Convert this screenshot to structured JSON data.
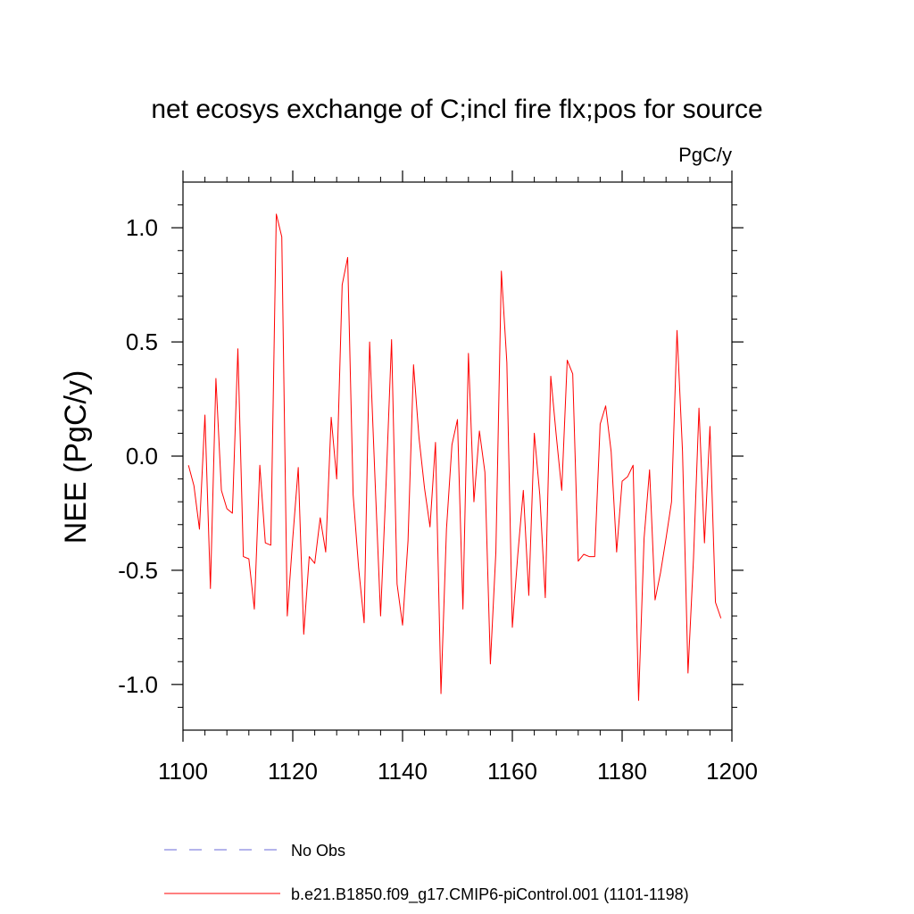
{
  "chart_data": {
    "type": "line",
    "title": "net ecosys exchange of C;incl fire flx;pos for source",
    "units_label": "PgC/y",
    "xlabel": "",
    "ylabel": "NEE  (PgC/y)",
    "xlim": [
      1100,
      1200
    ],
    "ylim": [
      -1.2,
      1.2
    ],
    "x_ticks": [
      1100,
      1120,
      1140,
      1160,
      1180,
      1200
    ],
    "x_tick_labels": [
      "1100",
      "1120",
      "1140",
      "1160",
      "1180",
      "1200"
    ],
    "y_ticks": [
      -1.0,
      -0.5,
      0.0,
      0.5,
      1.0
    ],
    "y_tick_labels": [
      "-1.0",
      "-0.5",
      "0.0",
      "0.5",
      "1.0"
    ],
    "x_minor_step": 4,
    "y_minor_step": 0.1,
    "grid": false,
    "legend_position": "bottom",
    "series": [
      {
        "name": "b.e21.B1850.f09_g17.CMIP6-piControl.001 (1101-1198)",
        "color": "#ff0000",
        "style": "solid",
        "x_start": 1101,
        "x_step": 1,
        "values": [
          -0.04,
          -0.13,
          -0.32,
          0.18,
          -0.58,
          0.34,
          -0.15,
          -0.23,
          -0.25,
          0.47,
          -0.44,
          -0.45,
          -0.67,
          -0.04,
          -0.38,
          -0.39,
          1.06,
          0.96,
          -0.7,
          -0.36,
          -0.05,
          -0.78,
          -0.44,
          -0.47,
          -0.27,
          -0.42,
          0.17,
          -0.1,
          0.75,
          0.87,
          -0.17,
          -0.49,
          -0.73,
          0.5,
          -0.11,
          -0.7,
          -0.12,
          0.51,
          -0.56,
          -0.74,
          -0.37,
          0.4,
          0.08,
          -0.14,
          -0.31,
          0.06,
          -1.04,
          -0.32,
          0.05,
          0.16,
          -0.67,
          0.45,
          -0.2,
          0.11,
          -0.07,
          -0.91,
          -0.42,
          0.81,
          0.41,
          -0.75,
          -0.43,
          -0.15,
          -0.61,
          0.1,
          -0.17,
          -0.62,
          0.35,
          0.09,
          -0.15,
          0.42,
          0.36,
          -0.46,
          -0.43,
          -0.44,
          -0.44,
          0.14,
          0.22,
          0.02,
          -0.42,
          -0.11,
          -0.09,
          -0.04,
          -1.07,
          -0.36,
          -0.06,
          -0.63,
          -0.51,
          -0.36,
          -0.2,
          0.55,
          0.02,
          -0.95,
          -0.45,
          0.21,
          -0.38,
          0.13,
          -0.64,
          -0.71
        ]
      },
      {
        "name": "No Obs",
        "color": "#6a6ad8",
        "style": "dashed",
        "values": []
      }
    ]
  }
}
